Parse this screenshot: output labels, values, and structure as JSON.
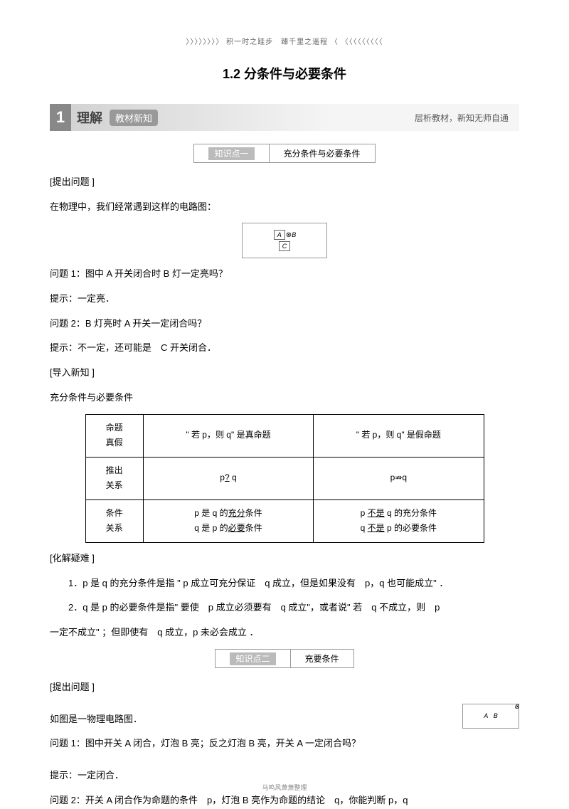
{
  "header": "〉〉〉〉〉〉〉〉 积一时之跬步　臻千里之遥程 〈 〈〈〈〈〈〈〈〈〈",
  "title": "1.2 分条件与必要条件",
  "banner": {
    "num": "1",
    "label": "理解",
    "tag": "教材新知",
    "sub": "层析教材，新知无师自通"
  },
  "knowledge1": {
    "label": "知识点一",
    "content": "充分条件与必要条件"
  },
  "section1": {
    "q_label": "[提出问题 ]",
    "intro": "在物理中，我们经常遇到这样的电路图：",
    "q1": "问题 1：图中 A 开关闭合时 B 灯一定亮吗？",
    "a1": "提示：一定亮．",
    "q2": "问题 2：B 灯亮时 A 开关一定闭合吗？",
    "a2": "提示：不一定，还可能是　C 开关闭合．",
    "import_label": "[导入新知 ]",
    "import_title": "充分条件与必要条件"
  },
  "table": {
    "r1c1a": "命题",
    "r1c1b": "真假",
    "r1c2": "\" 若 p，则 q\" 是真命题",
    "r1c3": "\" 若 p，则 q\" 是假命题",
    "r2c1a": "推出",
    "r2c1b": "关系",
    "r2c2": "p⇒q",
    "r2c3": "p⇏q",
    "r3c1a": "条件",
    "r3c1b": "关系",
    "r3c2a": "p 是 q 的",
    "r3c2a_u": "充分",
    "r3c2a_end": "条件",
    "r3c2b": "q 是 p 的",
    "r3c2b_u": "必要",
    "r3c2b_end": "条件",
    "r3c3a": "p ",
    "r3c3a_u": "不是",
    "r3c3a_end": " q 的充分条件",
    "r3c3b": "q ",
    "r3c3b_u": "不是",
    "r3c3b_end": " p 的必要条件"
  },
  "explain": {
    "label": "[化解疑难 ]",
    "p1": "1．p 是 q 的充分条件是指 \" p 成立可充分保证　q 成立，但是如果没有　p，q 也可能成立\" ．",
    "p2": "2．q 是 p 的必要条件是指\" 要使　p 成立必须要有　q 成立\"，或者说\" 若　q 不成立，则　p",
    "p2b": "一定不成立\" ；但即使有　q 成立，p 未必会成立 ．"
  },
  "knowledge2": {
    "label": "知识点二",
    "content": "充要条件"
  },
  "section2": {
    "q_label": "[提出问题 ]",
    "intro": "如图是一物理电路图．",
    "q1": "问题 1：图中开关 A 闭合，灯泡 B 亮；反之灯泡 B 亮，开关 A 一定闭合吗？",
    "a1": "提示：一定闭合．",
    "q2": "问题 2：开关 A 闭合作为命题的条件　p，灯泡 B 亮作为命题的结论　q，你能判断 p，q"
  },
  "circuit1": {
    "a": "A",
    "c": "C",
    "b": "B"
  },
  "circuit2": {
    "a": "A",
    "b": "B"
  },
  "footer": "马鸣风萧萧整理"
}
